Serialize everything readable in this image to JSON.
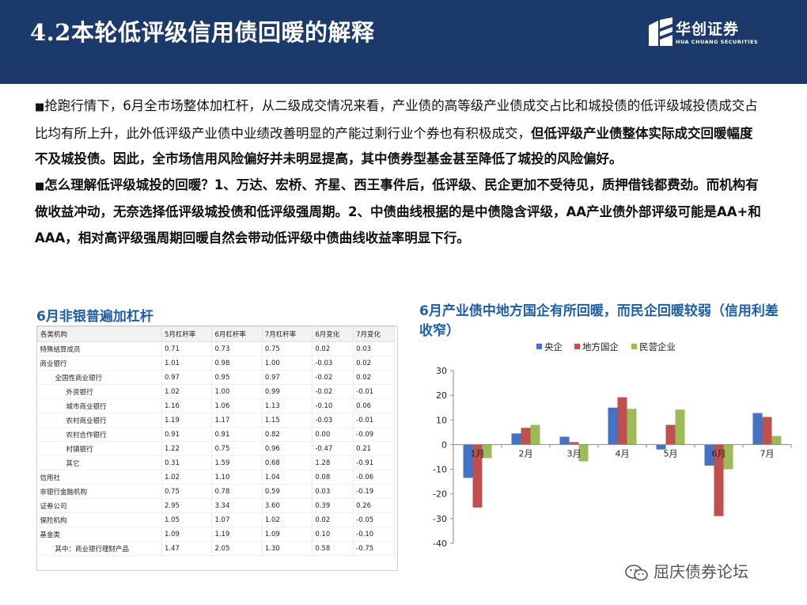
{
  "header": {
    "title": "4.2本轮低评级信用债回暖的解释",
    "logo_cn": "华创证券",
    "logo_en": "HUA CHUANG SECURITIES"
  },
  "body": {
    "bullet": "■",
    "p1_normal": "抢跑行情下，6月全市场整体加杠杆，从二级成交情况来看，产业债的高等级产业债成交占比和城投债的低评级城投债成交占比均有所上升，此外低评级产业债中业绩改善明显的产能过剩行业个券也有积极成交，",
    "p1_bold": "但低评级产业债整体实际成交回暖幅度不及城投债。因此，全市场信用风险偏好并未明显提高，其中债券型基金甚至降低了城投的风险偏好。",
    "p2_bold": "怎么理解低评级城投的回暖？1、万达、宏桥、齐星、西王事件后，低评级、民企更加不受待见，质押借钱都费劲。而机构有做收益冲动，无奈选择低评级城投债和低评级强周期。2、中债曲线根据的是中债隐含评级，AA产业债外部评级可能是AA+和AAA，相对高评级强周期回暖自然会带动低评级中债曲线收益率明显下行。"
  },
  "table": {
    "title": "6月非银普遍加杠杆",
    "columns": [
      "各类机构",
      "5月杠杆率",
      "6月杠杆率",
      "7月杠杆率",
      "6月变化",
      "7月变化"
    ],
    "rows": [
      {
        "label": "特殊结算成员",
        "level": 0,
        "values": [
          "0.71",
          "0.73",
          "0.75",
          "0.02",
          "0.03"
        ]
      },
      {
        "label": "商业银行",
        "level": 0,
        "values": [
          "1.01",
          "0.98",
          "1.00",
          "-0.03",
          "0.02"
        ]
      },
      {
        "label": "全国性商业银行",
        "level": 1,
        "values": [
          "0.97",
          "0.95",
          "0.97",
          "-0.02",
          "0.02"
        ]
      },
      {
        "label": "外资银行",
        "level": 2,
        "values": [
          "1.02",
          "1.00",
          "0.99",
          "-0.02",
          "-0.01"
        ]
      },
      {
        "label": "城市商业银行",
        "level": 2,
        "values": [
          "1.16",
          "1.06",
          "1.13",
          "-0.10",
          "0.06"
        ]
      },
      {
        "label": "农村商业银行",
        "level": 2,
        "values": [
          "1.19",
          "1.17",
          "1.15",
          "-0.03",
          "-0.01"
        ]
      },
      {
        "label": "农村合作银行",
        "level": 2,
        "values": [
          "0.91",
          "0.91",
          "0.82",
          "0.00",
          "-0.09"
        ]
      },
      {
        "label": "村镇银行",
        "level": 2,
        "values": [
          "1.22",
          "0.75",
          "0.96",
          "-0.47",
          "0.21"
        ]
      },
      {
        "label": "其它",
        "level": 2,
        "values": [
          "0.31",
          "1.59",
          "0.68",
          "1.28",
          "-0.91"
        ]
      },
      {
        "label": "信用社",
        "level": 0,
        "values": [
          "1.02",
          "1.10",
          "1.04",
          "0.08",
          "-0.06"
        ]
      },
      {
        "label": "非银行金融机构",
        "level": 0,
        "values": [
          "0.75",
          "0.78",
          "0.59",
          "0.03",
          "-0.19"
        ]
      },
      {
        "label": "证券公司",
        "level": 0,
        "values": [
          "2.95",
          "3.34",
          "3.60",
          "0.39",
          "0.26"
        ]
      },
      {
        "label": "保险机构",
        "level": 0,
        "values": [
          "1.05",
          "1.07",
          "1.02",
          "0.02",
          "-0.05"
        ]
      },
      {
        "label": "基金类",
        "level": 0,
        "values": [
          "1.09",
          "1.19",
          "1.09",
          "0.10",
          "-0.10"
        ]
      },
      {
        "label": "其中：商业银行理财产品",
        "level": 1,
        "values": [
          "1.47",
          "2.05",
          "1.30",
          "0.58",
          "-0.75"
        ]
      }
    ]
  },
  "chart_data": {
    "type": "bar",
    "title": "6月产业债中地方国企有所回暖，而民企回暖较弱（信用利差收窄）",
    "categories": [
      "1月",
      "2月",
      "3月",
      "4月",
      "5月",
      "6月",
      "7月"
    ],
    "series": [
      {
        "name": "央企",
        "color": "#4472c4",
        "values": [
          -13.5,
          4.5,
          3.2,
          15,
          -2,
          -8.5,
          12.8
        ]
      },
      {
        "name": "地方国企",
        "color": "#c0504d",
        "values": [
          -25.5,
          6.8,
          1.0,
          19.2,
          8.0,
          -29,
          11.2
        ]
      },
      {
        "name": "民营企业",
        "color": "#9bbb59",
        "values": [
          -5.5,
          8.0,
          -6.8,
          14.5,
          14.2,
          -10,
          3.5
        ]
      }
    ],
    "ylim": [
      -40,
      30
    ],
    "yticks": [
      30,
      20,
      10,
      0,
      -10,
      -20,
      -30,
      -40
    ],
    "legend": "top",
    "grid": false
  },
  "watermark": {
    "text": "屈庆债券论坛",
    "icon": "wechat-icon"
  }
}
